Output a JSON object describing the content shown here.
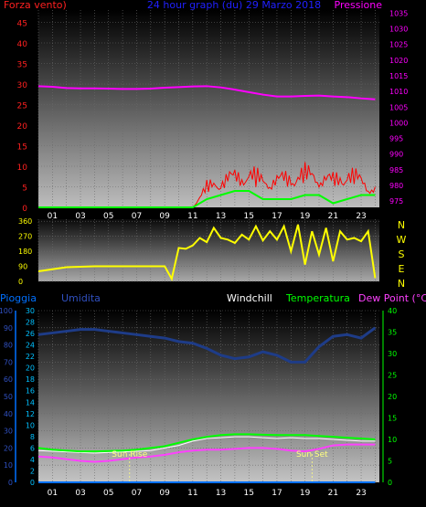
{
  "chart_data": [
    {
      "type": "line",
      "title": "24 hour graph (du)  29 Marzo 2018",
      "left_axis_label": "Forza vento)",
      "right_axis_label": "Pressione",
      "x_ticks": [
        "01",
        "03",
        "05",
        "07",
        "09",
        "11",
        "13",
        "15",
        "17",
        "19",
        "21",
        "23"
      ],
      "left_ticks": [
        0,
        5,
        10,
        15,
        20,
        25,
        30,
        35,
        40,
        45
      ],
      "right_ticks": [
        975,
        980,
        985,
        990,
        995,
        1000,
        1005,
        1010,
        1015,
        1020,
        1025,
        1030,
        1035
      ],
      "left_range": [
        0,
        48
      ],
      "right_range": [
        973,
        1036
      ],
      "hour_range": [
        0,
        24.3
      ],
      "grid": true,
      "colors": {
        "title": "#2020ff",
        "left": "#ff2020",
        "right": "#ff00ff",
        "pressure": "#ff00ff",
        "gust": "#ff0000",
        "wind": "#00ff00"
      },
      "pressure": {
        "x": [
          0,
          1,
          2,
          3,
          4,
          5,
          6,
          7,
          8,
          9,
          10,
          11,
          12,
          13,
          14,
          15,
          16,
          17,
          18,
          19,
          20,
          21,
          22,
          23,
          24
        ],
        "y": [
          1011.7,
          1011.5,
          1011.1,
          1011.0,
          1011.0,
          1010.9,
          1010.8,
          1010.8,
          1010.9,
          1011.2,
          1011.4,
          1011.6,
          1011.7,
          1011.3,
          1010.6,
          1009.8,
          1009.0,
          1008.4,
          1008.4,
          1008.6,
          1008.7,
          1008.4,
          1008.2,
          1007.8,
          1007.5
        ]
      },
      "gust": {
        "x": [
          0,
          1,
          2,
          3,
          4,
          5,
          6,
          7,
          8,
          9,
          10,
          11,
          12,
          13,
          14,
          15,
          16,
          17,
          18,
          19,
          20,
          21,
          22,
          23,
          24
        ],
        "y": [
          0,
          0,
          0,
          0,
          0,
          0,
          0,
          0,
          0,
          0,
          0,
          0,
          6,
          8,
          9,
          10,
          8,
          8,
          9,
          10,
          9,
          8,
          10,
          8,
          5
        ]
      },
      "wind": {
        "x": [
          0,
          1,
          2,
          3,
          4,
          5,
          6,
          7,
          8,
          9,
          10,
          11,
          12,
          13,
          14,
          15,
          16,
          17,
          18,
          19,
          20,
          21,
          22,
          23,
          24
        ],
        "y": [
          0,
          0,
          0,
          0,
          0,
          0,
          0,
          0,
          0,
          0,
          0,
          0,
          2,
          3,
          4,
          4,
          2,
          2,
          2,
          3,
          3,
          1,
          2,
          3,
          3
        ]
      }
    },
    {
      "type": "line",
      "title": "",
      "left_ticks": [
        0,
        90,
        180,
        270,
        360
      ],
      "right_labels": [
        "N",
        "W",
        "S",
        "E",
        "N"
      ],
      "range": [
        0,
        372
      ],
      "hour_range": [
        0,
        24.3
      ],
      "grid": true,
      "colors": {
        "axis": "#ffff00",
        "line": "#ffff00"
      },
      "direction": {
        "x": [
          0,
          2,
          4,
          6,
          8,
          9,
          9.5,
          10,
          10.5,
          11,
          11.5,
          12,
          12.5,
          13,
          13.5,
          14,
          14.5,
          15,
          15.5,
          16,
          16.5,
          17,
          17.5,
          18,
          18.5,
          19,
          19.5,
          20,
          20.5,
          21,
          21.5,
          22,
          22.5,
          23,
          23.5,
          24
        ],
        "y": [
          60,
          85,
          90,
          90,
          90,
          90,
          15,
          200,
          195,
          215,
          260,
          235,
          320,
          260,
          250,
          230,
          280,
          250,
          330,
          245,
          300,
          250,
          330,
          180,
          340,
          100,
          300,
          160,
          320,
          120,
          300,
          250,
          260,
          240,
          300,
          20
        ]
      }
    },
    {
      "type": "line",
      "title": "",
      "legend": [
        "Pioggia",
        "Umidita",
        "Windchill",
        "Temperatura",
        "Dew Point (°C)"
      ],
      "left_ticks": [
        0,
        10,
        20,
        30,
        40,
        50,
        60,
        70,
        80,
        90,
        100
      ],
      "inner_ticks": [
        0,
        2,
        4,
        6,
        8,
        10,
        12,
        14,
        16,
        18,
        20,
        22,
        24,
        26,
        28,
        30
      ],
      "right_ticks": [
        0,
        5,
        10,
        15,
        20,
        25,
        30,
        35,
        40
      ],
      "humidity_range": [
        0,
        100
      ],
      "temp_range": [
        0,
        40
      ],
      "hour_range": [
        0,
        24.3
      ],
      "grid": true,
      "annotations": [
        {
          "text": "Sun Rise",
          "x": 6.5
        },
        {
          "text": "Sun Set",
          "x": 19.5
        }
      ],
      "colors": {
        "pioggia": "#0070ff",
        "umidita": "#3050c0",
        "windchill": "#ffffff",
        "temperatura": "#00ff00",
        "dewpoint": "#ff40ff",
        "inner_axis": "#00c0ff"
      },
      "humidity": {
        "x": [
          0,
          1,
          2,
          3,
          4,
          5,
          6,
          7,
          8,
          9,
          10,
          11,
          12,
          13,
          14,
          15,
          16,
          17,
          18,
          19,
          20,
          21,
          22,
          23,
          24
        ],
        "y": [
          86,
          87,
          88,
          89,
          89,
          88,
          87,
          86,
          85,
          84,
          82,
          81,
          78,
          74,
          72,
          73,
          76,
          74,
          70,
          70,
          79,
          85,
          86,
          84,
          90
        ]
      },
      "temperature": {
        "x": [
          0,
          1,
          2,
          3,
          4,
          5,
          6,
          7,
          8,
          9,
          10,
          11,
          12,
          13,
          14,
          15,
          16,
          17,
          18,
          19,
          20,
          21,
          22,
          23,
          24
        ],
        "y": [
          8,
          7.6,
          7.4,
          7.2,
          7.2,
          7.3,
          7.4,
          7.6,
          8,
          8.4,
          9.2,
          10,
          10.6,
          11,
          11.2,
          11.2,
          11.1,
          11,
          11,
          11,
          10.8,
          10.6,
          10.4,
          10.2,
          10
        ]
      },
      "windchill": {
        "x": [
          0,
          4,
          8,
          10,
          11,
          12,
          13,
          14,
          15,
          16,
          17,
          18,
          19,
          20,
          21,
          22,
          23,
          24
        ],
        "y": [
          7.4,
          6.8,
          7.4,
          8.6,
          9.6,
          10.2,
          10.4,
          10.6,
          10.6,
          10.4,
          10.2,
          10.4,
          10.2,
          10.2,
          10,
          9.8,
          9.6,
          9.6
        ]
      },
      "dewpoint": {
        "x": [
          0,
          1,
          2,
          3,
          4,
          5,
          6,
          7,
          8,
          9,
          10,
          11,
          12,
          13,
          14,
          15,
          16,
          17,
          18,
          19,
          20,
          21,
          22,
          23,
          24
        ],
        "y": [
          6,
          5.8,
          5.4,
          5,
          4.8,
          5,
          5.4,
          5.8,
          6,
          6.4,
          7,
          7.4,
          7.6,
          7.6,
          7.8,
          8,
          8,
          7.8,
          7.4,
          7.2,
          7.8,
          8.6,
          8.8,
          8.8,
          8.8
        ]
      },
      "rain": {
        "x": [
          0,
          24
        ],
        "y": [
          0,
          0
        ]
      }
    }
  ]
}
